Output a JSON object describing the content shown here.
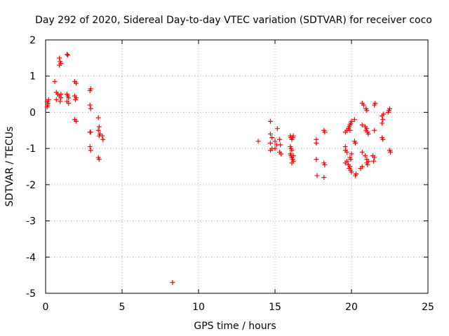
{
  "chart_data": {
    "type": "scatter",
    "title": "Day 292 of 2020, Sidereal Day-to-day VTEC variation (SDTVAR) for receiver coco",
    "xlabel": "GPS time / hours",
    "ylabel": "SDTVAR / TECUs",
    "xlim": [
      0,
      25
    ],
    "ylim": [
      -5,
      2
    ],
    "xticks": [
      0,
      5,
      10,
      15,
      20,
      25
    ],
    "yticks": [
      -5,
      -4,
      -3,
      -2,
      -1,
      0,
      1,
      2
    ],
    "grid": true,
    "marker": "+",
    "color": "#ff0000",
    "series": [
      {
        "name": "SDTVAR",
        "points": [
          [
            0.1,
            0.3
          ],
          [
            0.15,
            0.25
          ],
          [
            0.1,
            0.15
          ],
          [
            0.2,
            0.35
          ],
          [
            0.15,
            0.2
          ],
          [
            0.6,
            0.85
          ],
          [
            0.7,
            0.55
          ],
          [
            0.8,
            0.5
          ],
          [
            0.7,
            0.35
          ],
          [
            0.9,
            1.5
          ],
          [
            0.95,
            1.4
          ],
          [
            0.9,
            1.3
          ],
          [
            1.0,
            1.35
          ],
          [
            0.9,
            0.45
          ],
          [
            1.0,
            0.4
          ],
          [
            0.95,
            0.3
          ],
          [
            1.0,
            0.5
          ],
          [
            1.4,
            1.6
          ],
          [
            1.45,
            1.58
          ],
          [
            1.4,
            0.5
          ],
          [
            1.45,
            0.45
          ],
          [
            1.5,
            0.4
          ],
          [
            1.4,
            0.3
          ],
          [
            1.5,
            0.25
          ],
          [
            1.9,
            0.85
          ],
          [
            2.0,
            0.8
          ],
          [
            1.9,
            0.45
          ],
          [
            1.95,
            0.35
          ],
          [
            2.0,
            0.4
          ],
          [
            1.9,
            -0.2
          ],
          [
            2.0,
            -0.25
          ],
          [
            2.9,
            0.6
          ],
          [
            2.95,
            0.65
          ],
          [
            2.9,
            0.2
          ],
          [
            2.95,
            0.1
          ],
          [
            2.9,
            -0.55
          ],
          [
            2.95,
            -0.55
          ],
          [
            2.9,
            -0.95
          ],
          [
            2.95,
            -1.05
          ],
          [
            3.45,
            -0.15
          ],
          [
            3.5,
            -0.4
          ],
          [
            3.45,
            -0.5
          ],
          [
            3.55,
            -0.6
          ],
          [
            3.5,
            -0.65
          ],
          [
            3.7,
            -0.65
          ],
          [
            3.75,
            -0.75
          ],
          [
            3.45,
            -1.25
          ],
          [
            3.5,
            -1.3
          ],
          [
            8.3,
            -4.7
          ],
          [
            13.9,
            -0.8
          ],
          [
            14.7,
            -0.25
          ],
          [
            14.7,
            -0.6
          ],
          [
            14.8,
            -0.7
          ],
          [
            14.7,
            -0.85
          ],
          [
            14.8,
            -1.0
          ],
          [
            14.7,
            -1.05
          ],
          [
            15.0,
            -0.8
          ],
          [
            15.1,
            -0.9
          ],
          [
            15.0,
            -1.0
          ],
          [
            15.15,
            -0.45
          ],
          [
            15.3,
            -0.75
          ],
          [
            15.35,
            -0.9
          ],
          [
            15.3,
            -1.1
          ],
          [
            15.4,
            -1.15
          ],
          [
            16.0,
            -0.65
          ],
          [
            16.05,
            -0.7
          ],
          [
            16.1,
            -0.75
          ],
          [
            16.15,
            -0.7
          ],
          [
            16.2,
            -0.65
          ],
          [
            16.0,
            -0.95
          ],
          [
            16.05,
            -1.0
          ],
          [
            16.1,
            -1.05
          ],
          [
            16.0,
            -1.15
          ],
          [
            16.05,
            -1.2
          ],
          [
            16.1,
            -1.25
          ],
          [
            16.15,
            -1.3
          ],
          [
            16.2,
            -1.35
          ],
          [
            16.1,
            -1.4
          ],
          [
            16.2,
            -1.2
          ],
          [
            17.7,
            -0.75
          ],
          [
            17.7,
            -0.85
          ],
          [
            17.7,
            -1.3
          ],
          [
            17.75,
            -1.75
          ],
          [
            18.2,
            -0.5
          ],
          [
            18.25,
            -0.55
          ],
          [
            18.2,
            -1.4
          ],
          [
            18.25,
            -1.45
          ],
          [
            18.2,
            -1.8
          ],
          [
            19.6,
            -0.55
          ],
          [
            19.7,
            -0.5
          ],
          [
            19.8,
            -0.45
          ],
          [
            19.85,
            -0.4
          ],
          [
            19.9,
            -0.35
          ],
          [
            19.95,
            -0.3
          ],
          [
            20.0,
            -0.25
          ],
          [
            19.9,
            -0.5
          ],
          [
            19.6,
            -0.95
          ],
          [
            19.6,
            -1.05
          ],
          [
            19.7,
            -1.1
          ],
          [
            19.6,
            -1.4
          ],
          [
            19.7,
            -1.35
          ],
          [
            19.8,
            -1.45
          ],
          [
            19.9,
            -1.5
          ],
          [
            19.85,
            -1.55
          ],
          [
            19.95,
            -1.6
          ],
          [
            20.0,
            -1.65
          ],
          [
            19.9,
            -1.25
          ],
          [
            20.0,
            -1.15
          ],
          [
            19.95,
            -1.3
          ],
          [
            20.2,
            -0.2
          ],
          [
            20.2,
            -0.8
          ],
          [
            20.25,
            -0.85
          ],
          [
            20.3,
            -1.7
          ],
          [
            20.25,
            -1.75
          ],
          [
            20.6,
            -1.55
          ],
          [
            20.7,
            -1.5
          ],
          [
            20.7,
            -1.1
          ],
          [
            20.7,
            0.25
          ],
          [
            20.8,
            0.2
          ],
          [
            20.95,
            0.1
          ],
          [
            21.0,
            0.05
          ],
          [
            20.7,
            -0.35
          ],
          [
            20.9,
            -0.4
          ],
          [
            21.0,
            -0.45
          ],
          [
            20.95,
            -0.5
          ],
          [
            21.05,
            -0.55
          ],
          [
            21.1,
            -0.6
          ],
          [
            20.9,
            -1.2
          ],
          [
            21.0,
            -1.3
          ],
          [
            21.1,
            -1.35
          ],
          [
            21.0,
            -1.4
          ],
          [
            21.05,
            -1.45
          ],
          [
            21.4,
            -1.2
          ],
          [
            21.5,
            -1.25
          ],
          [
            21.45,
            -1.35
          ],
          [
            21.5,
            -0.5
          ],
          [
            21.5,
            0.2
          ],
          [
            21.55,
            0.25
          ],
          [
            22.0,
            -0.1
          ],
          [
            22.05,
            -0.2
          ],
          [
            22.0,
            -0.3
          ],
          [
            22.1,
            -0.05
          ],
          [
            22.0,
            -0.7
          ],
          [
            22.05,
            -0.75
          ],
          [
            22.4,
            0.0
          ],
          [
            22.45,
            0.05
          ],
          [
            22.5,
            0.1
          ],
          [
            22.5,
            -1.05
          ],
          [
            22.55,
            -1.1
          ]
        ]
      }
    ],
    "x_tick_labels": [
      "0",
      "5",
      "10",
      "15",
      "20",
      "25"
    ],
    "y_tick_labels": [
      "-5",
      "-4",
      "-3",
      "-2",
      "-1",
      "0",
      "1",
      "2"
    ]
  }
}
